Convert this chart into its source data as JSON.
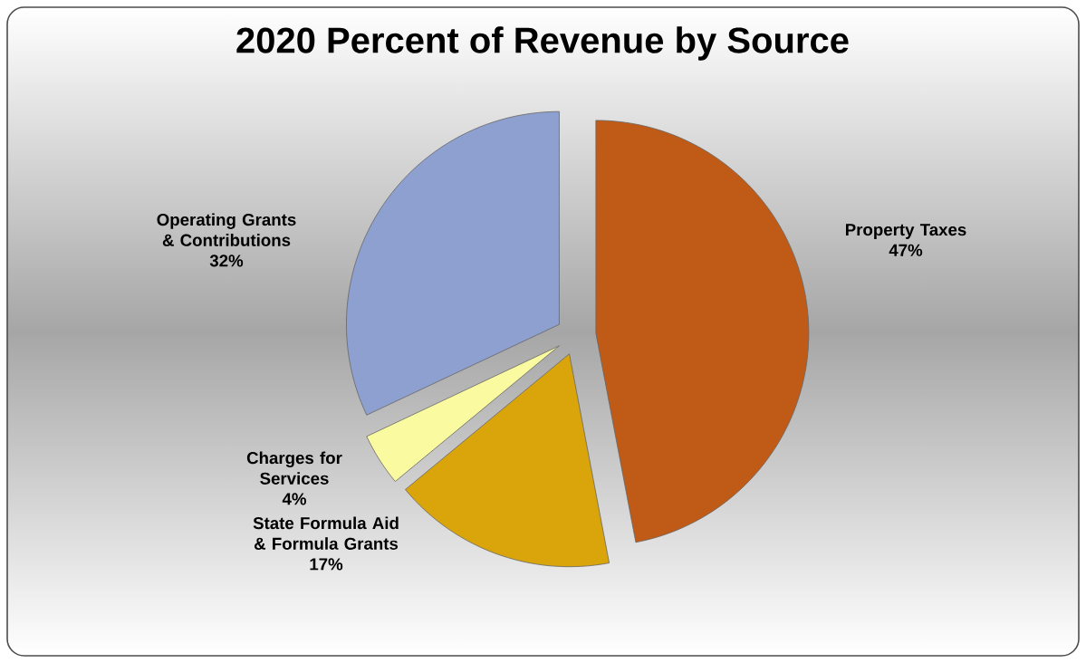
{
  "chart_data": {
    "type": "pie",
    "title": "2020 Percent of Revenue by Source",
    "categories": [
      "Property Taxes",
      "State Formula Aid & Formula Grants",
      "Charges for Services",
      "Operating Grants & Contributions"
    ],
    "values": [
      47,
      17,
      4,
      32
    ],
    "value_labels": [
      "47%",
      "17%",
      "4%",
      "32%"
    ],
    "colors": [
      "#c05a17",
      "#daa50a",
      "#fafaa0",
      "#8da0cf"
    ]
  }
}
